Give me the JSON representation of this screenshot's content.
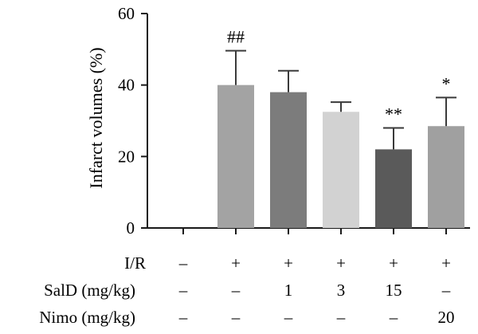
{
  "chart_data": {
    "type": "bar",
    "ylabel": "Infarct volumes (%)",
    "ylim": [
      0,
      60
    ],
    "yticks": [
      0,
      20,
      40,
      60
    ],
    "grid": false,
    "legend": "none",
    "groups": [
      {
        "value": 0,
        "error": 0,
        "color": "#9a9a9a",
        "significance": ""
      },
      {
        "value": 40,
        "error": 9.6,
        "color": "#a3a3a3",
        "significance": "##"
      },
      {
        "value": 38,
        "error": 6.0,
        "color": "#7c7c7c",
        "significance": ""
      },
      {
        "value": 32.5,
        "error": 2.7,
        "color": "#d2d2d2",
        "significance": ""
      },
      {
        "value": 22,
        "error": 6.0,
        "color": "#5a5a5a",
        "significance": "**"
      },
      {
        "value": 28.5,
        "error": 8.0,
        "color": "#a0a0a0",
        "significance": "*"
      }
    ],
    "conditions": [
      {
        "label": "I/R",
        "values": [
          "–",
          "+",
          "+",
          "+",
          "+",
          "+"
        ]
      },
      {
        "label": "SalD (mg/kg)",
        "values": [
          "–",
          "–",
          "1",
          "3",
          "15",
          "–"
        ]
      },
      {
        "label": "Nimo (mg/kg)",
        "values": [
          "–",
          "–",
          "–",
          "–",
          "–",
          "20"
        ]
      }
    ]
  }
}
